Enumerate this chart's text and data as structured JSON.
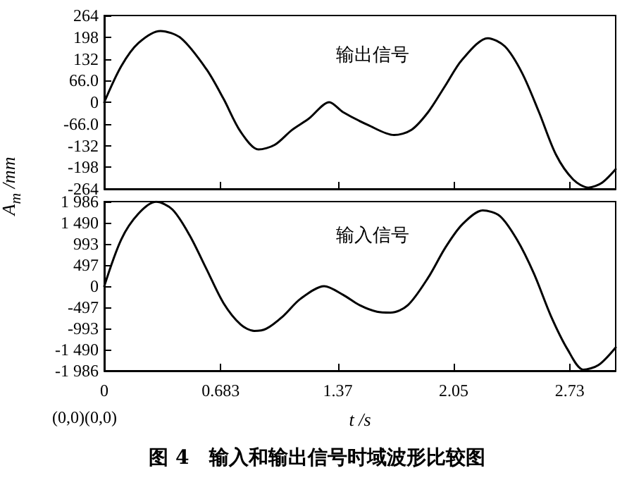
{
  "chart_data": [
    {
      "type": "line",
      "xlim": [
        0,
        3
      ],
      "xticks": [
        0,
        0.683,
        1.37,
        2.05,
        2.73
      ],
      "ylim": [
        -264,
        264
      ],
      "yticks": [
        {
          "value": -264,
          "label": "-264"
        },
        {
          "value": -198,
          "label": "-198"
        },
        {
          "value": -132,
          "label": "-132"
        },
        {
          "value": -66,
          "label": "-66.0"
        },
        0,
        {
          "value": 66,
          "label": "66.0"
        },
        132,
        198,
        264
      ],
      "tick_labels": "y",
      "grid": false,
      "legend": false,
      "marker": "none",
      "line_style": "solid",
      "series": [
        {
          "name": "输出信号",
          "color": "#000000",
          "x": [
            0,
            0.1,
            0.2,
            0.33,
            0.45,
            0.6,
            0.7,
            0.8,
            0.905,
            1.0,
            1.1,
            1.2,
            1.32,
            1.4,
            1.55,
            1.7,
            1.8,
            1.9,
            2.0,
            2.1,
            2.25,
            2.35,
            2.45,
            2.55,
            2.65,
            2.75,
            2.84,
            2.92,
            3.0
          ],
          "values": [
            0,
            110,
            180,
            217,
            195,
            100,
            10,
            -90,
            -144,
            -130,
            -85,
            -50,
            0,
            -30,
            -70,
            -100,
            -85,
            -30,
            50,
            130,
            195,
            170,
            90,
            -30,
            -160,
            -235,
            -260,
            -245,
            -204
          ]
        }
      ]
    },
    {
      "type": "line",
      "xlabel": "t /s",
      "ylabel": "A$_{m}$ /mm",
      "title": "图 4　输入和输出信号时域波形比较图",
      "annotations": [
        "(0,0)(0,0)"
      ],
      "xlim": [
        0,
        3
      ],
      "xticks": [
        0,
        0.683,
        1.37,
        2.05,
        2.73
      ],
      "ylim": [
        -1986,
        1986
      ],
      "yticks": [
        {
          "value": -1986,
          "label": "-1 986"
        },
        {
          "value": -1490,
          "label": "-1 490"
        },
        -993,
        -497,
        0,
        497,
        993,
        {
          "value": 1490,
          "label": "1 490"
        },
        {
          "value": 1986,
          "label": "1 986"
        }
      ],
      "grid": false,
      "legend": false,
      "marker": "none",
      "line_style": "solid",
      "series": [
        {
          "name": "输入信号",
          "color": "#000000",
          "x": [
            0,
            0.1,
            0.2,
            0.305,
            0.4,
            0.5,
            0.6,
            0.7,
            0.8,
            0.88,
            0.95,
            1.05,
            1.15,
            1.29,
            1.4,
            1.5,
            1.6,
            1.68,
            1.78,
            1.9,
            2.0,
            2.1,
            2.22,
            2.32,
            2.42,
            2.52,
            2.62,
            2.72,
            2.81,
            2.9,
            3.0
          ],
          "values": [
            0,
            1100,
            1700,
            1980,
            1800,
            1200,
            400,
            -400,
            -900,
            -1050,
            -1000,
            -700,
            -300,
            0,
            -200,
            -450,
            -600,
            -620,
            -450,
            200,
            900,
            1450,
            1780,
            1650,
            1100,
            300,
            -700,
            -1500,
            -1960,
            -1850,
            -1440
          ]
        }
      ]
    }
  ]
}
